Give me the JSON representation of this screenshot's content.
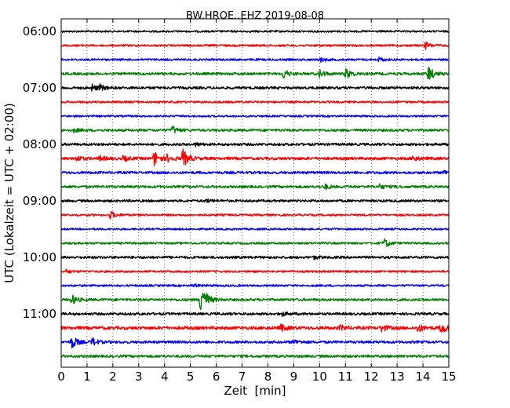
{
  "chart_data": {
    "type": "line",
    "title": "BW.HROE..EHZ 2019-08-08",
    "xlabel": "Zeit  [min]",
    "ylabel": "UTC (Lokalzeit = UTC + 02:00)",
    "xlim": [
      0,
      15
    ],
    "x_ticks": [
      "0",
      "1",
      "2",
      "3",
      "4",
      "5",
      "6",
      "7",
      "8",
      "9",
      "10",
      "11",
      "12",
      "13",
      "14",
      "15"
    ],
    "y_tick_labels": [
      "06:00",
      "07:00",
      "08:00",
      "09:00",
      "10:00",
      "11:00"
    ],
    "grid": "dotted-vertical",
    "trace_colors": [
      "#000000",
      "#ff0000",
      "#0000ff",
      "#008000"
    ],
    "traces": [
      {
        "start": "06:00",
        "color": "#000000",
        "noise": 1.2,
        "events": []
      },
      {
        "start": "06:15",
        "color": "#ff0000",
        "noise": 1.3,
        "events": [
          {
            "t": 14.1,
            "a": 4
          }
        ]
      },
      {
        "start": "06:30",
        "color": "#0000ff",
        "noise": 1.3,
        "events": [
          {
            "t": 10.0,
            "a": 3
          },
          {
            "t": 12.3,
            "a": 2.5
          }
        ]
      },
      {
        "start": "06:45",
        "color": "#008000",
        "noise": 1.6,
        "events": [
          {
            "t": 8.6,
            "a": 6
          },
          {
            "t": 10.0,
            "a": 5
          },
          {
            "t": 11.0,
            "a": 7
          },
          {
            "t": 14.2,
            "a": 10
          }
        ]
      },
      {
        "start": "07:00",
        "color": "#000000",
        "noise": 1.6,
        "events": [
          {
            "t": 1.2,
            "a": 4
          },
          {
            "t": 1.5,
            "a": 3
          }
        ]
      },
      {
        "start": "07:15",
        "color": "#ff0000",
        "noise": 1.3,
        "events": []
      },
      {
        "start": "07:30",
        "color": "#0000ff",
        "noise": 1.2,
        "events": []
      },
      {
        "start": "07:45",
        "color": "#008000",
        "noise": 1.6,
        "events": [
          {
            "t": 4.3,
            "a": 5
          },
          {
            "t": 0.5,
            "a": 2
          }
        ]
      },
      {
        "start": "08:00",
        "color": "#000000",
        "noise": 1.6,
        "events": [
          {
            "t": 5.2,
            "a": 2
          }
        ]
      },
      {
        "start": "08:15",
        "color": "#ff0000",
        "noise": 1.8,
        "events": [
          {
            "t": 0.6,
            "a": 3
          },
          {
            "t": 1.5,
            "a": 3
          },
          {
            "t": 2.4,
            "a": 3
          },
          {
            "t": 3.6,
            "a": 9
          },
          {
            "t": 4.1,
            "a": 4
          },
          {
            "t": 4.7,
            "a": 12
          },
          {
            "t": 13.6,
            "a": 3
          }
        ]
      },
      {
        "start": "08:30",
        "color": "#0000ff",
        "noise": 1.6,
        "events": [
          {
            "t": 14.8,
            "a": 3
          }
        ]
      },
      {
        "start": "08:45",
        "color": "#008000",
        "noise": 1.6,
        "events": [
          {
            "t": 10.2,
            "a": 3
          },
          {
            "t": 12.3,
            "a": 3
          }
        ]
      },
      {
        "start": "09:00",
        "color": "#000000",
        "noise": 1.5,
        "events": [
          {
            "t": 5.6,
            "a": 2
          }
        ]
      },
      {
        "start": "09:15",
        "color": "#ff0000",
        "noise": 1.3,
        "events": [
          {
            "t": 1.9,
            "a": 5
          }
        ]
      },
      {
        "start": "09:30",
        "color": "#0000ff",
        "noise": 1.2,
        "events": []
      },
      {
        "start": "09:45",
        "color": "#008000",
        "noise": 1.3,
        "events": [
          {
            "t": 12.5,
            "a": 6
          }
        ]
      },
      {
        "start": "10:00",
        "color": "#000000",
        "noise": 1.6,
        "events": [
          {
            "t": 9.8,
            "a": 2
          }
        ]
      },
      {
        "start": "10:15",
        "color": "#ff0000",
        "noise": 1.3,
        "events": [
          {
            "t": 0.2,
            "a": 2
          }
        ]
      },
      {
        "start": "10:30",
        "color": "#0000ff",
        "noise": 1.3,
        "events": [
          {
            "t": 5.1,
            "a": 2
          }
        ]
      },
      {
        "start": "10:45",
        "color": "#008000",
        "noise": 1.6,
        "events": [
          {
            "t": 0.4,
            "a": 6
          },
          {
            "t": 5.4,
            "a": 26
          }
        ]
      },
      {
        "start": "11:00",
        "color": "#000000",
        "noise": 1.6,
        "events": [
          {
            "t": 8.5,
            "a": 3
          }
        ]
      },
      {
        "start": "11:15",
        "color": "#ff0000",
        "noise": 2.0,
        "events": [
          {
            "t": 8.5,
            "a": 4
          },
          {
            "t": 10.8,
            "a": 3
          },
          {
            "t": 12.4,
            "a": 4
          },
          {
            "t": 13.8,
            "a": 5
          },
          {
            "t": 14.7,
            "a": 7
          }
        ]
      },
      {
        "start": "11:30",
        "color": "#0000ff",
        "noise": 1.6,
        "events": [
          {
            "t": 0.4,
            "a": 9
          },
          {
            "t": 1.2,
            "a": 5
          },
          {
            "t": 9.0,
            "a": 3
          }
        ]
      },
      {
        "start": "11:45",
        "color": "#008000",
        "noise": 1.6,
        "events": []
      }
    ]
  }
}
